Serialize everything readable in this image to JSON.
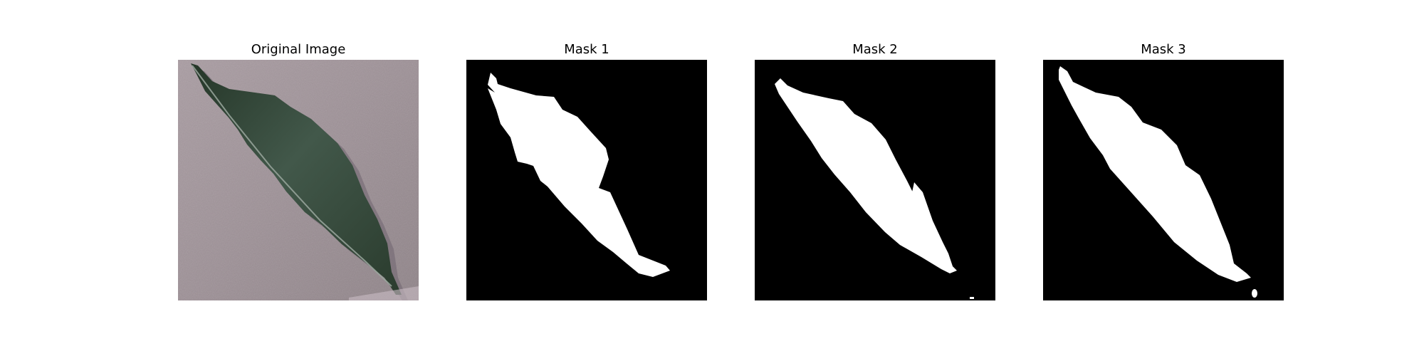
{
  "figure": {
    "panels": [
      {
        "title": "Original Image",
        "kind": "photo"
      },
      {
        "title": "Mask 1",
        "kind": "mask"
      },
      {
        "title": "Mask 2",
        "kind": "mask"
      },
      {
        "title": "Mask 3",
        "kind": "mask"
      }
    ]
  },
  "colors": {
    "background_surface": "#9b8f95",
    "leaf": "#2f4433",
    "mask_background": "#000000",
    "mask_foreground": "#ffffff"
  }
}
